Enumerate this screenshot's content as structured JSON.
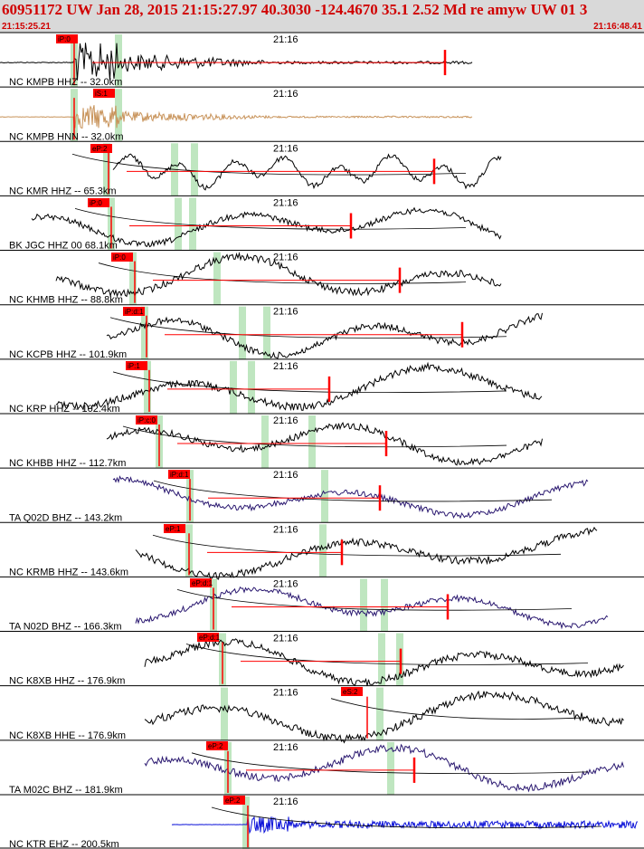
{
  "header": {
    "title": "60951172 UW Jan 28, 2015 21:15:27.97   40.3030 -124.4670 35.1 2.52 Md re amyw UW 01   3",
    "start_time": "21:15:25.21",
    "end_time": "21:16:48.41"
  },
  "colors": {
    "header_bg": "#d9d9d9",
    "header_text": "#d00000",
    "pick_box": "#ff0000",
    "pick_text": "#000000",
    "pick_line": "#ff0000",
    "highlight": "#bfe6c0",
    "travel_curve": "#000000",
    "separator": "#000000",
    "trace_default": "#000000"
  },
  "chart_data": {
    "type": "seismogram_record_section",
    "title": "60951172 UW Jan 28, 2015 21:15:27.97   40.3030 -124.4670 35.1 2.52 Md re amyw UW 01   3",
    "time_range": [
      "21:15:25.21",
      "21:16:48.41"
    ],
    "minute_marker": "21:16",
    "origin_time": "21:15:27.97",
    "epicenter": {
      "lat": 40.303,
      "lon": -124.467
    },
    "depth": 35.1,
    "magnitude": 2.52,
    "magnitude_type": "Md",
    "traces": [
      {
        "label": "NC KMPB HHZ -- 32.0km",
        "network": "NC",
        "station": "KMPB",
        "channel": "HHZ",
        "distance_km": 32.0,
        "pick": "iP:0",
        "color": "#000000"
      },
      {
        "label": "NC KMPB HNN -- 32.0km",
        "network": "NC",
        "station": "KMPB",
        "channel": "HNN",
        "distance_km": 32.0,
        "pick": "iS:1",
        "color": "#c8935a"
      },
      {
        "label": "NC KMR HHZ -- 65.3km",
        "network": "NC",
        "station": "KMR",
        "channel": "HHZ",
        "distance_km": 65.3,
        "pick": "eP:2",
        "color": "#000000"
      },
      {
        "label": "BK JGC HHZ 00 68.1km",
        "network": "BK",
        "station": "JGC",
        "channel": "HHZ",
        "location": "00",
        "distance_km": 68.1,
        "pick": "iP:0",
        "color": "#000000"
      },
      {
        "label": "NC KHMB HHZ -- 88.8km",
        "network": "NC",
        "station": "KHMB",
        "channel": "HHZ",
        "distance_km": 88.8,
        "pick": "iP:0",
        "color": "#000000"
      },
      {
        "label": "NC KCPB HHZ -- 101.9km",
        "network": "NC",
        "station": "KCPB",
        "channel": "HHZ",
        "distance_km": 101.9,
        "pick": "iP:d:1",
        "color": "#000000"
      },
      {
        "label": "NC KRP HHZ -- 102.4km",
        "network": "NC",
        "station": "KRP",
        "channel": "HHZ",
        "distance_km": 102.4,
        "pick": "iP:1",
        "color": "#000000"
      },
      {
        "label": "NC KHBB HHZ -- 112.7km",
        "network": "NC",
        "station": "KHBB",
        "channel": "HHZ",
        "distance_km": 112.7,
        "pick": "iP:c:0",
        "color": "#000000"
      },
      {
        "label": "TA Q02D BHZ -- 143.2km",
        "network": "TA",
        "station": "Q02D",
        "channel": "BHZ",
        "distance_km": 143.2,
        "pick": "iP:d:1",
        "color": "#2a1870"
      },
      {
        "label": "NC KRMB HHZ -- 143.6km",
        "network": "NC",
        "station": "KRMB",
        "channel": "HHZ",
        "distance_km": 143.6,
        "pick": "eP:1",
        "color": "#000000"
      },
      {
        "label": "TA N02D BHZ -- 166.3km",
        "network": "TA",
        "station": "N02D",
        "channel": "BHZ",
        "distance_km": 166.3,
        "pick": "eP:d:1",
        "color": "#2a1870"
      },
      {
        "label": "NC K8XB HHZ -- 176.9km",
        "network": "NC",
        "station": "K8XB",
        "channel": "HHZ",
        "distance_km": 176.9,
        "pick": "eP:d:1",
        "color": "#000000"
      },
      {
        "label": "NC K8XB HHE -- 176.9km",
        "network": "NC",
        "station": "K8XB",
        "channel": "HHE",
        "distance_km": 176.9,
        "pick": "eS:2",
        "color": "#000000"
      },
      {
        "label": "TA M02C BHZ -- 181.9km",
        "network": "TA",
        "station": "M02C",
        "channel": "BHZ",
        "distance_km": 181.9,
        "pick": "eP:2",
        "color": "#2a1870"
      },
      {
        "label": "NC KTR EHZ -- 200.5km",
        "network": "NC",
        "station": "KTR",
        "channel": "EHZ",
        "distance_km": 200.5,
        "pick": "eP:2",
        "color": "#0a10d8"
      }
    ]
  }
}
